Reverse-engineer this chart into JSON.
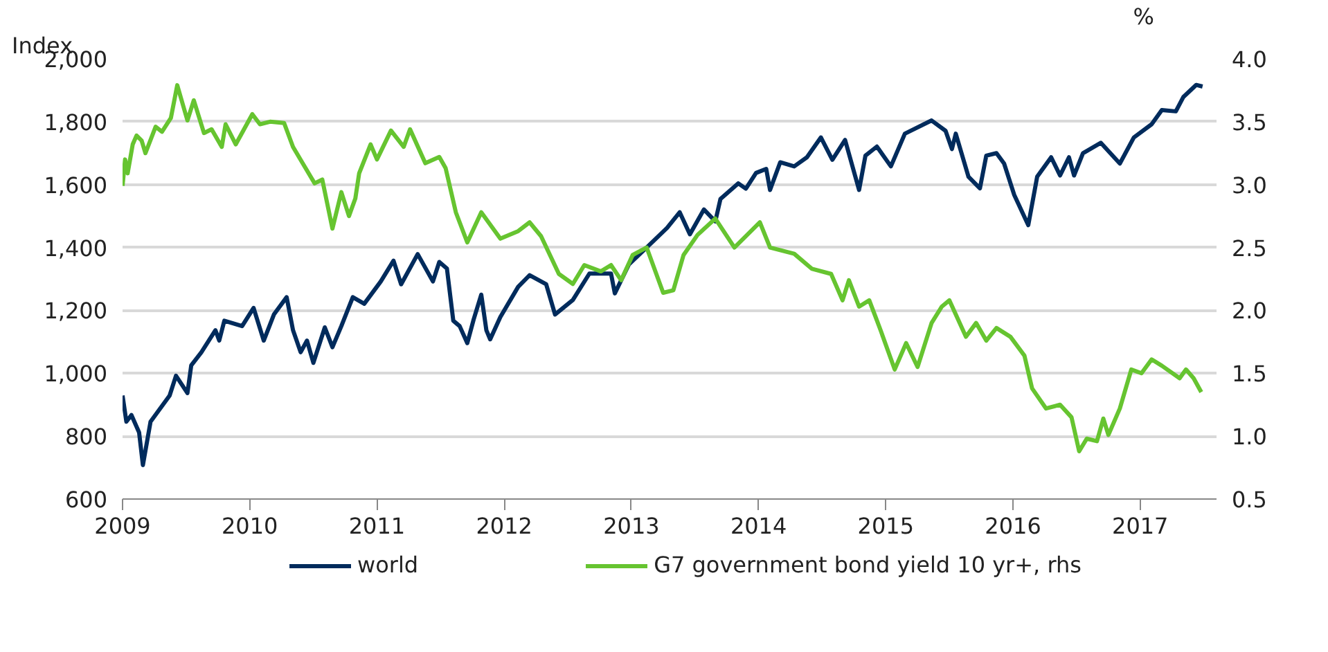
{
  "chart_data": {
    "type": "line",
    "ylabel": "Index",
    "y2label": "%",
    "xlim": [
      2009,
      2017.6
    ],
    "xticks": [
      2009,
      2010,
      2011,
      2012,
      2013,
      2014,
      2015,
      2016,
      2017
    ],
    "ylim": [
      600,
      2000
    ],
    "yticks": [
      {
        "value": 600,
        "label": "600"
      },
      {
        "value": 800,
        "label": "800"
      },
      {
        "value": 1000,
        "label": "1,000"
      },
      {
        "value": 1200,
        "label": "1,200"
      },
      {
        "value": 1400,
        "label": "1,400"
      },
      {
        "value": 1600,
        "label": "1,600"
      },
      {
        "value": 1800,
        "label": "1,800"
      },
      {
        "value": 2000,
        "label": "2,000"
      }
    ],
    "y2lim": [
      0.5,
      4.0
    ],
    "y2ticks": [
      {
        "value": 0.5,
        "label": "0.5"
      },
      {
        "value": 1,
        "label": "1.0"
      },
      {
        "value": 1.5,
        "label": "1.5"
      },
      {
        "value": 2,
        "label": "2.0"
      },
      {
        "value": 2.5,
        "label": "2.5"
      },
      {
        "value": 3,
        "label": "3.0"
      },
      {
        "value": 3.5,
        "label": "3.5"
      },
      {
        "value": 4,
        "label": "4.0"
      }
    ],
    "grid": "y",
    "legend": "bottom",
    "line_style": "solid",
    "marker": "none",
    "series": [
      {
        "name": "world",
        "color": "#002b5c",
        "x": [
          2009.0,
          2009.03,
          2009.07,
          2009.13,
          2009.16,
          2009.22,
          2009.37,
          2009.42,
          2009.51,
          2009.54,
          2009.62,
          2009.73,
          2009.76,
          2009.8,
          2009.94,
          2010.03,
          2010.11,
          2010.19,
          2010.29,
          2010.34,
          2010.4,
          2010.45,
          2010.5,
          2010.59,
          2010.65,
          2010.72,
          2010.81,
          2010.9,
          2011.03,
          2011.13,
          2011.19,
          2011.32,
          2011.44,
          2011.49,
          2011.55,
          2011.6,
          2011.65,
          2011.71,
          2011.76,
          2011.82,
          2011.86,
          2011.89,
          2011.97,
          2012.11,
          2012.2,
          2012.33,
          2012.4,
          2012.54,
          2012.67,
          2012.84,
          2012.87,
          2012.98,
          2013.12,
          2013.28,
          2013.38,
          2013.46,
          2013.57,
          2013.66,
          2013.7,
          2013.84,
          2013.9,
          2013.98,
          2014.06,
          2014.09,
          2014.17,
          2014.28,
          2014.38,
          2014.49,
          2014.58,
          2014.68,
          2014.79,
          2014.84,
          2014.93,
          2015.04,
          2015.15,
          2015.36,
          2015.47,
          2015.52,
          2015.55,
          2015.65,
          2015.74,
          2015.79,
          2015.87,
          2015.93,
          2016.01,
          2016.12,
          2016.19,
          2016.3,
          2016.37,
          2016.44,
          2016.48,
          2016.55,
          2016.69,
          2016.84,
          2016.95,
          2017.09,
          2017.17,
          2017.28,
          2017.34,
          2017.44,
          2017.49
        ],
        "values": [
          929,
          846,
          867,
          812,
          708,
          846,
          929,
          992,
          937,
          1025,
          1067,
          1137,
          1104,
          1167,
          1150,
          1208,
          1104,
          1187,
          1242,
          1137,
          1067,
          1104,
          1033,
          1146,
          1083,
          1150,
          1242,
          1221,
          1292,
          1358,
          1283,
          1379,
          1292,
          1354,
          1333,
          1167,
          1150,
          1096,
          1171,
          1250,
          1137,
          1108,
          1179,
          1275,
          1312,
          1283,
          1187,
          1233,
          1317,
          1317,
          1254,
          1346,
          1400,
          1462,
          1512,
          1442,
          1521,
          1483,
          1554,
          1604,
          1587,
          1637,
          1650,
          1583,
          1671,
          1658,
          1687,
          1750,
          1679,
          1742,
          1583,
          1692,
          1721,
          1658,
          1762,
          1804,
          1771,
          1713,
          1762,
          1625,
          1588,
          1692,
          1700,
          1667,
          1567,
          1471,
          1625,
          1687,
          1629,
          1687,
          1629,
          1700,
          1733,
          1667,
          1750,
          1792,
          1837,
          1833,
          1879,
          1917,
          1912
        ]
      },
      {
        "name": "G7 government bond yield 10 yr+, rhs",
        "color": "#66c430",
        "axis": "y2",
        "x": [
          2009.0,
          2009.02,
          2009.04,
          2009.08,
          2009.11,
          2009.15,
          2009.18,
          2009.26,
          2009.31,
          2009.38,
          2009.43,
          2009.51,
          2009.56,
          2009.64,
          2009.7,
          2009.78,
          2009.81,
          2009.89,
          2010.02,
          2010.08,
          2010.16,
          2010.27,
          2010.34,
          2010.41,
          2010.51,
          2010.57,
          2010.65,
          2010.72,
          2010.78,
          2010.83,
          2010.86,
          2010.95,
          2011.0,
          2011.11,
          2011.21,
          2011.26,
          2011.38,
          2011.49,
          2011.54,
          2011.62,
          2011.71,
          2011.82,
          2011.97,
          2012.11,
          2012.2,
          2012.29,
          2012.43,
          2012.54,
          2012.63,
          2012.76,
          2012.84,
          2012.92,
          2013.01,
          2013.12,
          2013.25,
          2013.33,
          2013.41,
          2013.52,
          2013.66,
          2013.81,
          2014.01,
          2014.09,
          2014.28,
          2014.42,
          2014.57,
          2014.66,
          2014.71,
          2014.79,
          2014.87,
          2014.96,
          2015.07,
          2015.16,
          2015.25,
          2015.36,
          2015.44,
          2015.5,
          2015.63,
          2015.71,
          2015.79,
          2015.87,
          2015.98,
          2016.09,
          2016.15,
          2016.26,
          2016.37,
          2016.46,
          2016.52,
          2016.58,
          2016.66,
          2016.71,
          2016.75,
          2016.84,
          2016.93,
          2017.01,
          2017.09,
          2017.17,
          2017.31,
          2017.36,
          2017.42,
          2017.48
        ],
        "values": [
          2.99,
          3.2,
          3.09,
          3.32,
          3.39,
          3.35,
          3.25,
          3.46,
          3.42,
          3.53,
          3.79,
          3.51,
          3.67,
          3.41,
          3.44,
          3.3,
          3.48,
          3.32,
          3.56,
          3.48,
          3.5,
          3.49,
          3.3,
          3.18,
          3.01,
          3.04,
          2.65,
          2.94,
          2.75,
          2.89,
          3.09,
          3.32,
          3.2,
          3.43,
          3.3,
          3.44,
          3.17,
          3.22,
          3.13,
          2.78,
          2.54,
          2.78,
          2.57,
          2.63,
          2.7,
          2.59,
          2.29,
          2.21,
          2.36,
          2.31,
          2.36,
          2.24,
          2.44,
          2.5,
          2.14,
          2.16,
          2.44,
          2.6,
          2.73,
          2.5,
          2.7,
          2.5,
          2.45,
          2.33,
          2.29,
          2.08,
          2.24,
          2.03,
          2.08,
          1.84,
          1.53,
          1.74,
          1.55,
          1.9,
          2.03,
          2.08,
          1.79,
          1.9,
          1.76,
          1.86,
          1.79,
          1.64,
          1.38,
          1.22,
          1.25,
          1.15,
          0.88,
          0.98,
          0.96,
          1.14,
          1.01,
          1.22,
          1.53,
          1.5,
          1.61,
          1.56,
          1.46,
          1.53,
          1.46,
          1.35
        ]
      }
    ]
  }
}
